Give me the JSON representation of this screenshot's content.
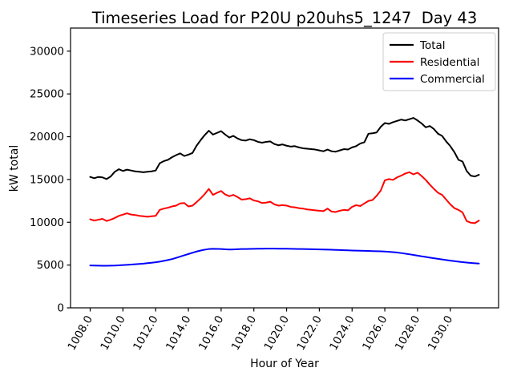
{
  "chart_data": {
    "type": "line",
    "title": "Timeseries Load for P20U p20uhs5_1247  Day 43",
    "xlabel": "Hour of Year",
    "ylabel": "kW total",
    "xlim": [
      1006.8,
      1032.95
    ],
    "ylim": [
      0,
      32700
    ],
    "grid": false,
    "legend_position": "upper right",
    "x_start": 1008.0,
    "x_step": 0.25,
    "x_ticks": [
      1008.0,
      1010.0,
      1012.0,
      1014.0,
      1016.0,
      1018.0,
      1020.0,
      1022.0,
      1024.0,
      1026.0,
      1028.0,
      1030.0
    ],
    "x_tick_labels": [
      "1008.0",
      "1010.0",
      "1012.0",
      "1014.0",
      "1016.0",
      "1018.0",
      "1020.0",
      "1022.0",
      "1024.0",
      "1026.0",
      "1028.0",
      "1030.0"
    ],
    "y_ticks": [
      0,
      5000,
      10000,
      15000,
      20000,
      25000,
      30000
    ],
    "y_tick_labels": [
      "0",
      "5000",
      "10000",
      "15000",
      "20000",
      "25000",
      "30000"
    ],
    "series": [
      {
        "name": "Total",
        "color": "#000000",
        "values": [
          15300,
          15150,
          15300,
          15250,
          15050,
          15350,
          15900,
          16200,
          16000,
          16150,
          16050,
          15950,
          15900,
          15850,
          15900,
          15950,
          16050,
          16900,
          17150,
          17300,
          17600,
          17850,
          18050,
          17750,
          17900,
          18100,
          18950,
          19600,
          20200,
          20700,
          20250,
          20450,
          20650,
          20250,
          19900,
          20100,
          19800,
          19600,
          19550,
          19700,
          19600,
          19400,
          19300,
          19400,
          19450,
          19150,
          19000,
          19100,
          18950,
          18850,
          18900,
          18750,
          18650,
          18600,
          18550,
          18500,
          18400,
          18300,
          18500,
          18300,
          18250,
          18400,
          18550,
          18500,
          18750,
          18900,
          19200,
          19350,
          20350,
          20400,
          20500,
          21150,
          21600,
          21500,
          21700,
          21850,
          22000,
          21900,
          22050,
          22200,
          21900,
          21550,
          21100,
          21250,
          20900,
          20350,
          20100,
          19450,
          18900,
          18200,
          17300,
          17100,
          16000,
          15450,
          15350,
          15550
        ]
      },
      {
        "name": "Residential",
        "color": "#ff0000",
        "values": [
          10350,
          10200,
          10300,
          10400,
          10150,
          10300,
          10500,
          10750,
          10900,
          11050,
          10900,
          10850,
          10750,
          10700,
          10650,
          10700,
          10750,
          11450,
          11600,
          11700,
          11850,
          11950,
          12200,
          12250,
          11850,
          11950,
          12350,
          12800,
          13300,
          13900,
          13200,
          13450,
          13650,
          13250,
          13050,
          13200,
          12950,
          12650,
          12700,
          12800,
          12550,
          12450,
          12250,
          12300,
          12400,
          12100,
          11950,
          12000,
          11950,
          11800,
          11750,
          11650,
          11600,
          11500,
          11450,
          11400,
          11350,
          11300,
          11600,
          11250,
          11200,
          11350,
          11450,
          11400,
          11800,
          12000,
          11900,
          12200,
          12500,
          12600,
          13100,
          13700,
          14900,
          15050,
          14950,
          15250,
          15450,
          15700,
          15850,
          15600,
          15800,
          15400,
          14950,
          14400,
          13900,
          13450,
          13200,
          12650,
          12100,
          11650,
          11450,
          11150,
          10150,
          9950,
          9900,
          10200
        ]
      },
      {
        "name": "Commercial",
        "color": "#0000ff",
        "values": [
          4950,
          4940,
          4930,
          4920,
          4920,
          4930,
          4940,
          4970,
          5000,
          5030,
          5060,
          5090,
          5130,
          5170,
          5220,
          5270,
          5330,
          5400,
          5490,
          5590,
          5700,
          5840,
          5990,
          6140,
          6290,
          6440,
          6580,
          6700,
          6800,
          6870,
          6900,
          6890,
          6870,
          6840,
          6820,
          6830,
          6850,
          6870,
          6880,
          6890,
          6900,
          6910,
          6915,
          6920,
          6920,
          6920,
          6915,
          6910,
          6905,
          6900,
          6890,
          6880,
          6870,
          6860,
          6850,
          6840,
          6830,
          6820,
          6805,
          6790,
          6775,
          6760,
          6740,
          6720,
          6705,
          6690,
          6680,
          6665,
          6650,
          6635,
          6620,
          6600,
          6580,
          6550,
          6510,
          6460,
          6400,
          6330,
          6260,
          6180,
          6100,
          6020,
          5950,
          5870,
          5800,
          5730,
          5660,
          5590,
          5520,
          5460,
          5400,
          5340,
          5290,
          5250,
          5210,
          5180
        ]
      }
    ]
  }
}
